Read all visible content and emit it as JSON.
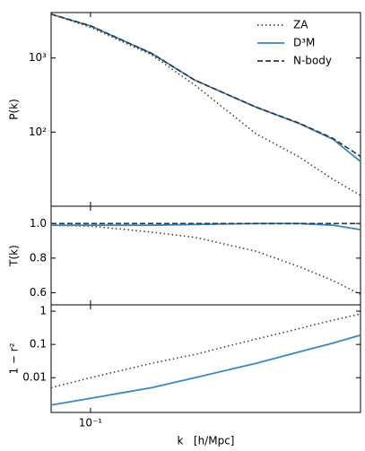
{
  "chart_data": [
    {
      "type": "line",
      "ylabel": "P(k)",
      "log_x": true,
      "log_y": true,
      "x": [
        0.077,
        0.1,
        0.15,
        0.2,
        0.3,
        0.4,
        0.5,
        0.6
      ],
      "xlim": [
        0.077,
        0.6
      ],
      "ylim": [
        10,
        4100
      ],
      "yticks": [
        {
          "value": 100,
          "label": "10²"
        },
        {
          "value": 1000,
          "label": "10³"
        }
      ],
      "legend": "upper right",
      "series": [
        {
          "name": "ZA",
          "color": "#444444",
          "linestyle": "dotted",
          "values": [
            3900,
            2600,
            1100,
            430,
            95,
            46,
            23,
            14
          ]
        },
        {
          "name": "D³M",
          "color": "#3a86c0",
          "linestyle": "solid",
          "values": [
            3900,
            2700,
            1150,
            500,
            217,
            130,
            80,
            40
          ]
        },
        {
          "name": "N-body",
          "color": "#333333",
          "linestyle": "dashed",
          "values": [
            3900,
            2720,
            1150,
            500,
            217,
            132,
            82,
            47
          ]
        }
      ]
    },
    {
      "type": "line",
      "ylabel": "T(k)",
      "log_x": true,
      "log_y": false,
      "x": [
        0.077,
        0.1,
        0.15,
        0.2,
        0.3,
        0.4,
        0.5,
        0.6
      ],
      "xlim": [
        0.077,
        0.6
      ],
      "ylim": [
        0.53,
        1.1
      ],
      "yticks": [
        0.6,
        0.8,
        {
          "value": 1.0,
          "label": "1.0"
        }
      ],
      "series": [
        {
          "color": "#444444",
          "linestyle": "dotted",
          "values": [
            0.99,
            0.985,
            0.95,
            0.92,
            0.84,
            0.75,
            0.67,
            0.59
          ]
        },
        {
          "color": "#3a86c0",
          "linestyle": "solid",
          "values": [
            0.99,
            0.99,
            0.99,
            0.995,
            1.0,
            1.0,
            0.99,
            0.965
          ]
        },
        {
          "color": "#333333",
          "linestyle": "dashed",
          "values": [
            1.0,
            1.0,
            1.0,
            1.0,
            1.0,
            1.0,
            1.0,
            1.0
          ]
        }
      ]
    },
    {
      "type": "line",
      "ylabel": "1 − r²",
      "xlabel": "k   [h/Mpc]",
      "log_x": true,
      "log_y": true,
      "x": [
        0.077,
        0.1,
        0.15,
        0.2,
        0.3,
        0.4,
        0.5,
        0.6
      ],
      "xlim": [
        0.077,
        0.6
      ],
      "xticks": [
        {
          "value": 0.1,
          "label": "10⁻¹"
        }
      ],
      "ylim": [
        0.0009,
        1.55
      ],
      "yticks": [
        0.01,
        0.1,
        1
      ],
      "series": [
        {
          "color": "#444444",
          "linestyle": "dotted",
          "values": [
            0.005,
            0.01,
            0.027,
            0.05,
            0.145,
            0.3,
            0.54,
            0.83
          ]
        },
        {
          "color": "#3a86c0",
          "linestyle": "solid",
          "values": [
            0.0015,
            0.0024,
            0.005,
            0.01,
            0.027,
            0.06,
            0.11,
            0.19
          ]
        }
      ]
    }
  ]
}
